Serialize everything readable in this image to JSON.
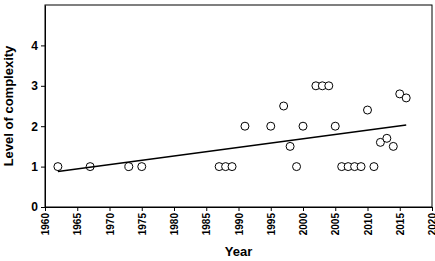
{
  "chart_data": {
    "type": "scatter",
    "x_label": "Year",
    "y_label": "Level of complexity",
    "xlim": [
      1960,
      2020
    ],
    "xticks": [
      1960,
      1965,
      1970,
      1975,
      1980,
      1985,
      1990,
      1995,
      2000,
      2005,
      2010,
      2015,
      2020
    ],
    "ylim": [
      0,
      5
    ],
    "yticks": [
      0,
      1,
      2,
      3,
      4
    ],
    "grid": false,
    "series": [
      {
        "type": "scatter",
        "marker": "circle",
        "color": "#000000",
        "x": [
          1962,
          1967,
          1973,
          1975,
          1987,
          1988,
          1989,
          1991,
          1995,
          1997,
          1998,
          1999,
          2000,
          2002,
          2003,
          2004,
          2005,
          2006,
          2007,
          2008,
          2009,
          2010,
          2011,
          2012,
          2013,
          2014,
          2015,
          2016
        ],
        "values": [
          1,
          1,
          1,
          1,
          1,
          1,
          1,
          2,
          2,
          2.5,
          1.5,
          1,
          2,
          3,
          3,
          3,
          2,
          1,
          1,
          1,
          1,
          2.4,
          1,
          1.6,
          1.7,
          1.5,
          2.8,
          2.7
        ]
      },
      {
        "type": "line",
        "line_style": "solid",
        "color": "#000000",
        "x": [
          1962,
          2016
        ],
        "values": [
          0.88,
          2.03
        ]
      }
    ]
  }
}
